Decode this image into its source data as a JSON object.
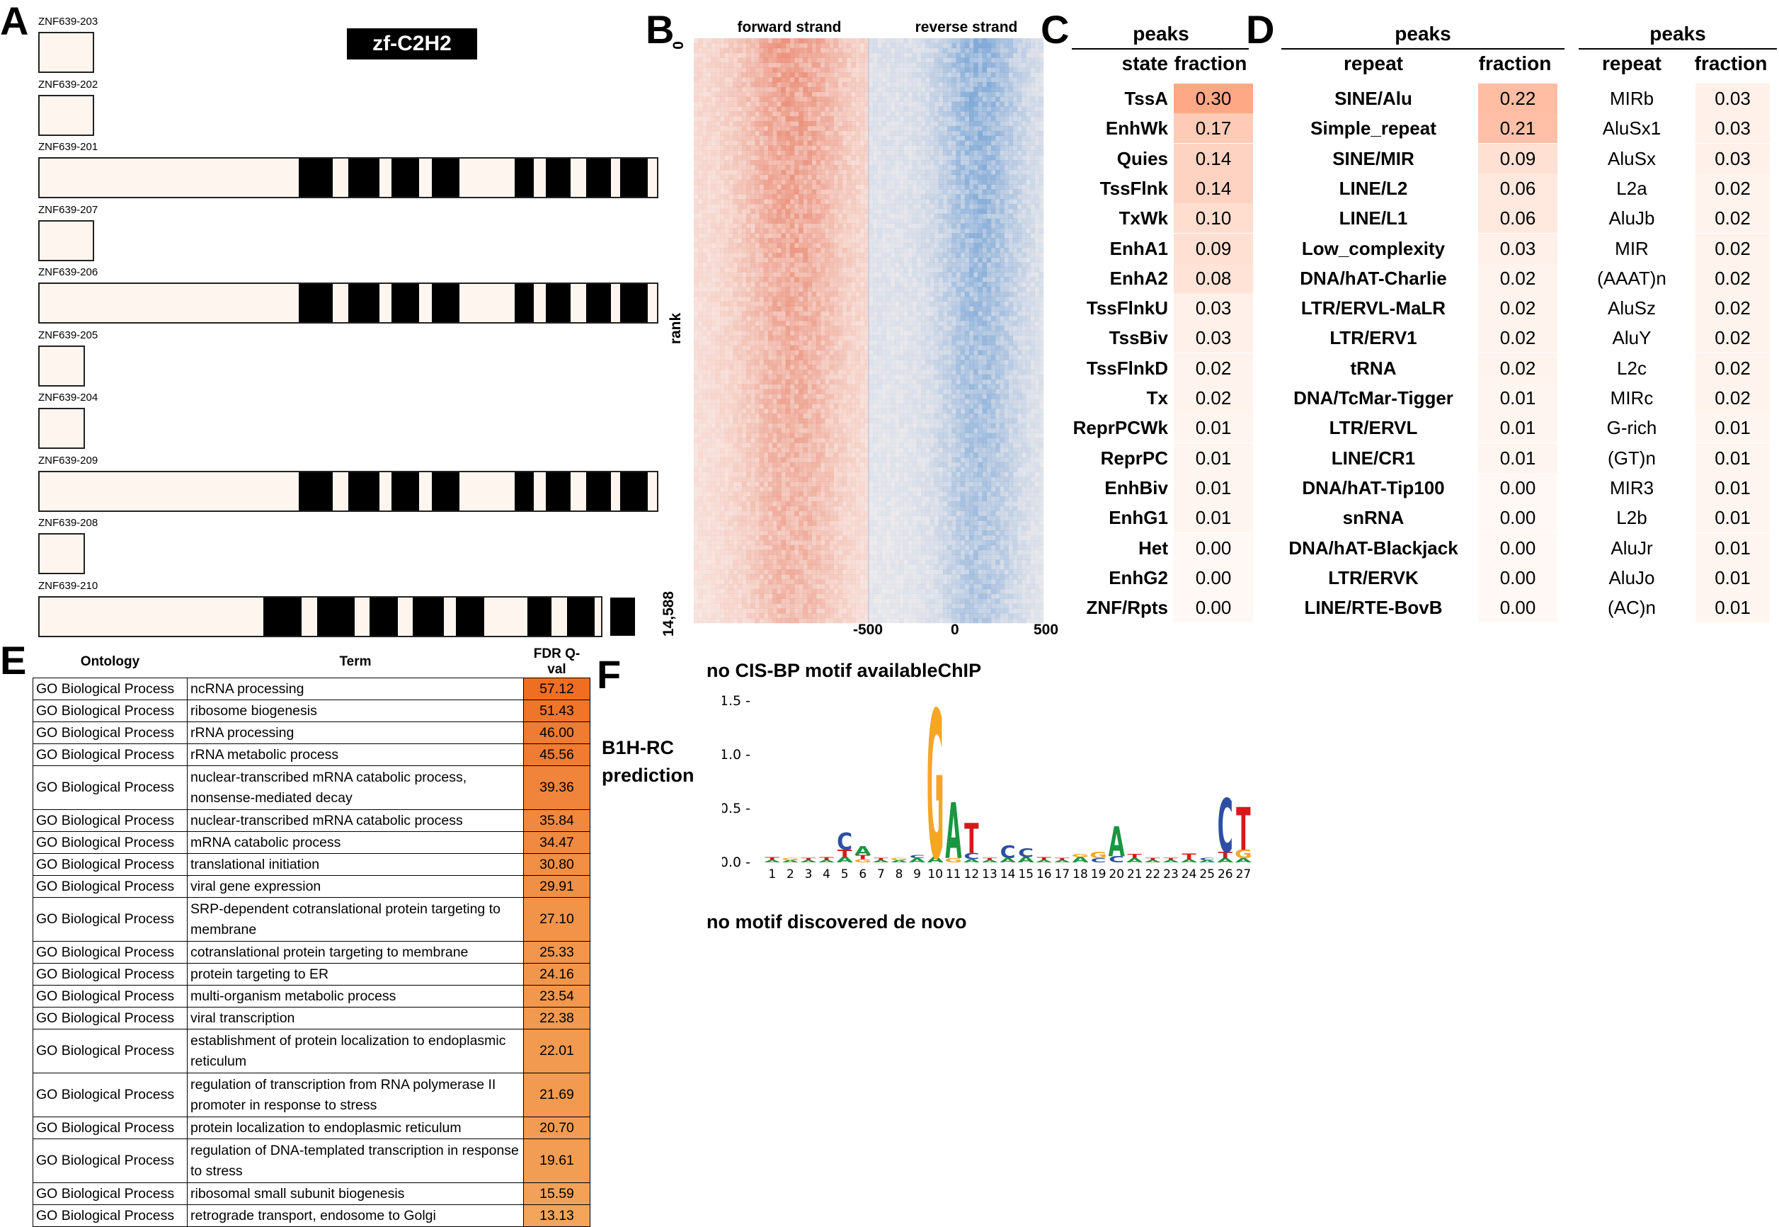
{
  "panel_labels": {
    "a": "A",
    "b": "B",
    "c": "C",
    "d": "D",
    "e": "E",
    "f": "F"
  },
  "panel_a": {
    "domain_badge": "zf-C2H2",
    "isoforms": [
      {
        "name": "ZNF639-203",
        "length": 0.09,
        "fingers": []
      },
      {
        "name": "ZNF639-202",
        "length": 0.09,
        "fingers": []
      },
      {
        "name": "ZNF639-201",
        "length": 1.0,
        "fingers": [
          [
            0.42,
            0.475
          ],
          [
            0.5,
            0.55
          ],
          [
            0.57,
            0.615
          ],
          [
            0.635,
            0.68
          ],
          [
            0.77,
            0.8
          ],
          [
            0.82,
            0.86
          ],
          [
            0.885,
            0.925
          ],
          [
            0.94,
            0.985
          ]
        ]
      },
      {
        "name": "ZNF639-207",
        "length": 0.09,
        "fingers": []
      },
      {
        "name": "ZNF639-206",
        "length": 1.0,
        "fingers": [
          [
            0.42,
            0.475
          ],
          [
            0.5,
            0.55
          ],
          [
            0.57,
            0.615
          ],
          [
            0.635,
            0.68
          ],
          [
            0.77,
            0.8
          ],
          [
            0.82,
            0.86
          ],
          [
            0.885,
            0.925
          ],
          [
            0.94,
            0.985
          ]
        ]
      },
      {
        "name": "ZNF639-205",
        "length": 0.075,
        "fingers": []
      },
      {
        "name": "ZNF639-204",
        "length": 0.075,
        "fingers": []
      },
      {
        "name": "ZNF639-209",
        "length": 1.0,
        "fingers": [
          [
            0.42,
            0.475
          ],
          [
            0.5,
            0.55
          ],
          [
            0.57,
            0.615
          ],
          [
            0.635,
            0.68
          ],
          [
            0.77,
            0.8
          ],
          [
            0.82,
            0.86
          ],
          [
            0.885,
            0.925
          ],
          [
            0.94,
            0.985
          ]
        ]
      },
      {
        "name": "ZNF639-208",
        "length": 0.075,
        "fingers": []
      },
      {
        "name": "ZNF639-210",
        "length": 0.91,
        "fingers": [
          [
            0.363,
            0.425
          ],
          [
            0.45,
            0.51
          ],
          [
            0.535,
            0.58
          ],
          [
            0.605,
            0.655
          ],
          [
            0.675,
            0.72
          ],
          [
            0.79,
            0.83
          ],
          [
            0.855,
            0.9
          ],
          [
            0.925,
            0.965
          ]
        ]
      }
    ]
  },
  "panel_b": {
    "title_forward": "forward strand",
    "title_reverse": "reverse strand",
    "y_label": "rank",
    "y_top": "0",
    "y_bottom": "14,588",
    "x_ticks": [
      "-500",
      "0",
      "500"
    ],
    "color_forward": "#e8826a",
    "color_reverse": "#6f9fd4"
  },
  "panel_c": {
    "group": "peaks",
    "col_state": "state",
    "col_fraction": "fraction",
    "rows": [
      {
        "state": "TssA",
        "fraction": "0.30"
      },
      {
        "state": "EnhWk",
        "fraction": "0.17"
      },
      {
        "state": "Quies",
        "fraction": "0.14"
      },
      {
        "state": "TssFlnk",
        "fraction": "0.14"
      },
      {
        "state": "TxWk",
        "fraction": "0.10"
      },
      {
        "state": "EnhA1",
        "fraction": "0.09"
      },
      {
        "state": "EnhA2",
        "fraction": "0.08"
      },
      {
        "state": "TssFlnkU",
        "fraction": "0.03"
      },
      {
        "state": "TssBiv",
        "fraction": "0.03"
      },
      {
        "state": "TssFlnkD",
        "fraction": "0.02"
      },
      {
        "state": "Tx",
        "fraction": "0.02"
      },
      {
        "state": "ReprPCWk",
        "fraction": "0.01"
      },
      {
        "state": "ReprPC",
        "fraction": "0.01"
      },
      {
        "state": "EnhBiv",
        "fraction": "0.01"
      },
      {
        "state": "EnhG1",
        "fraction": "0.01"
      },
      {
        "state": "Het",
        "fraction": "0.00"
      },
      {
        "state": "EnhG2",
        "fraction": "0.00"
      },
      {
        "state": "ZNF/Rpts",
        "fraction": "0.00"
      }
    ]
  },
  "panel_d": {
    "group1": "peaks",
    "group2": "peaks",
    "col_repeat": "repeat",
    "col_fraction": "fraction",
    "families": [
      {
        "repeat": "SINE/Alu",
        "fraction": "0.22"
      },
      {
        "repeat": "Simple_repeat",
        "fraction": "0.21"
      },
      {
        "repeat": "SINE/MIR",
        "fraction": "0.09"
      },
      {
        "repeat": "LINE/L2",
        "fraction": "0.06"
      },
      {
        "repeat": "LINE/L1",
        "fraction": "0.06"
      },
      {
        "repeat": "Low_complexity",
        "fraction": "0.03"
      },
      {
        "repeat": "DNA/hAT-Charlie",
        "fraction": "0.02"
      },
      {
        "repeat": "LTR/ERVL-MaLR",
        "fraction": "0.02"
      },
      {
        "repeat": "LTR/ERV1",
        "fraction": "0.02"
      },
      {
        "repeat": "tRNA",
        "fraction": "0.02"
      },
      {
        "repeat": "DNA/TcMar-Tigger",
        "fraction": "0.01"
      },
      {
        "repeat": "LTR/ERVL",
        "fraction": "0.01"
      },
      {
        "repeat": "LINE/CR1",
        "fraction": "0.01"
      },
      {
        "repeat": "DNA/hAT-Tip100",
        "fraction": "0.00"
      },
      {
        "repeat": "snRNA",
        "fraction": "0.00"
      },
      {
        "repeat": "DNA/hAT-Blackjack",
        "fraction": "0.00"
      },
      {
        "repeat": "LTR/ERVK",
        "fraction": "0.00"
      },
      {
        "repeat": "LINE/RTE-BovB",
        "fraction": "0.00"
      }
    ],
    "subfamilies": [
      {
        "repeat": "MIRb",
        "fraction": "0.03"
      },
      {
        "repeat": "AluSx1",
        "fraction": "0.03"
      },
      {
        "repeat": "AluSx",
        "fraction": "0.03"
      },
      {
        "repeat": "L2a",
        "fraction": "0.02"
      },
      {
        "repeat": "AluJb",
        "fraction": "0.02"
      },
      {
        "repeat": "MIR",
        "fraction": "0.02"
      },
      {
        "repeat": "(AAAT)n",
        "fraction": "0.02"
      },
      {
        "repeat": "AluSz",
        "fraction": "0.02"
      },
      {
        "repeat": "AluY",
        "fraction": "0.02"
      },
      {
        "repeat": "L2c",
        "fraction": "0.02"
      },
      {
        "repeat": "MIRc",
        "fraction": "0.02"
      },
      {
        "repeat": "G-rich",
        "fraction": "0.01"
      },
      {
        "repeat": "(GT)n",
        "fraction": "0.01"
      },
      {
        "repeat": "MIR3",
        "fraction": "0.01"
      },
      {
        "repeat": "L2b",
        "fraction": "0.01"
      },
      {
        "repeat": "AluJr",
        "fraction": "0.01"
      },
      {
        "repeat": "AluJo",
        "fraction": "0.01"
      },
      {
        "repeat": "(AC)n",
        "fraction": "0.01"
      }
    ]
  },
  "panel_e": {
    "headers": {
      "ontology": "Ontology",
      "term": "Term",
      "value": "FDR Q-val"
    },
    "rows": [
      {
        "ontology": "GO Biological Process",
        "term": "ncRNA processing",
        "value": "57.12",
        "lines": 1
      },
      {
        "ontology": "GO Biological Process",
        "term": "ribosome biogenesis",
        "value": "51.43",
        "lines": 1
      },
      {
        "ontology": "GO Biological Process",
        "term": "rRNA processing",
        "value": "46.00",
        "lines": 1
      },
      {
        "ontology": "GO Biological Process",
        "term": "rRNA metabolic process",
        "value": "45.56",
        "lines": 1
      },
      {
        "ontology": "GO Biological Process",
        "term": "nuclear-transcribed mRNA catabolic process, nonsense-mediated decay",
        "value": "39.36",
        "lines": 2
      },
      {
        "ontology": "GO Biological Process",
        "term": "nuclear-transcribed mRNA catabolic process",
        "value": "35.84",
        "lines": 1
      },
      {
        "ontology": "GO Biological Process",
        "term": "mRNA catabolic process",
        "value": "34.47",
        "lines": 1
      },
      {
        "ontology": "GO Biological Process",
        "term": "translational initiation",
        "value": "30.80",
        "lines": 1
      },
      {
        "ontology": "GO Biological Process",
        "term": "viral gene expression",
        "value": "29.91",
        "lines": 1
      },
      {
        "ontology": "GO Biological Process",
        "term": "SRP-dependent cotranslational protein targeting to membrane",
        "value": "27.10",
        "lines": 2
      },
      {
        "ontology": "GO Biological Process",
        "term": "cotranslational protein targeting to membrane",
        "value": "25.33",
        "lines": 1
      },
      {
        "ontology": "GO Biological Process",
        "term": "protein targeting to ER",
        "value": "24.16",
        "lines": 1
      },
      {
        "ontology": "GO Biological Process",
        "term": "multi-organism metabolic process",
        "value": "23.54",
        "lines": 1
      },
      {
        "ontology": "GO Biological Process",
        "term": "viral transcription",
        "value": "22.38",
        "lines": 1
      },
      {
        "ontology": "GO Biological Process",
        "term": "establishment of protein localization to endoplasmic reticulum",
        "value": "22.01",
        "lines": 2
      },
      {
        "ontology": "GO Biological Process",
        "term": "regulation of transcription from RNA polymerase II promoter in response to stress",
        "value": "21.69",
        "lines": 2
      },
      {
        "ontology": "GO Biological Process",
        "term": "protein localization to endoplasmic reticulum",
        "value": "20.70",
        "lines": 1
      },
      {
        "ontology": "GO Biological Process",
        "term": "regulation of DNA-templated transcription in response to stress",
        "value": "19.61",
        "lines": 2
      },
      {
        "ontology": "GO Biological Process",
        "term": "ribosomal small subunit biogenesis",
        "value": "15.59",
        "lines": 1
      },
      {
        "ontology": "GO Biological Process",
        "term": "retrograde transport, endosome to Golgi",
        "value": "13.13",
        "lines": 1
      }
    ]
  },
  "panel_f": {
    "cisbp_text": "no CIS-BP motif availableChIP",
    "b1h_text": "B1H-RC\nprediction",
    "denovo_text": "no motif discovered de novo",
    "y_ticks": [
      "0.0",
      "0.5",
      "1.0",
      "1.5"
    ],
    "positions": [
      "1",
      "2",
      "3",
      "4",
      "5",
      "6",
      "7",
      "8",
      "9",
      "10",
      "11",
      "12",
      "13",
      "14",
      "15",
      "16",
      "17",
      "18",
      "19",
      "20",
      "21",
      "22",
      "23",
      "24",
      "25",
      "26",
      "27"
    ],
    "colors": {
      "A": "#1a9641",
      "C": "#2c4fa3",
      "G": "#f5a623",
      "T": "#d7191c"
    }
  }
}
